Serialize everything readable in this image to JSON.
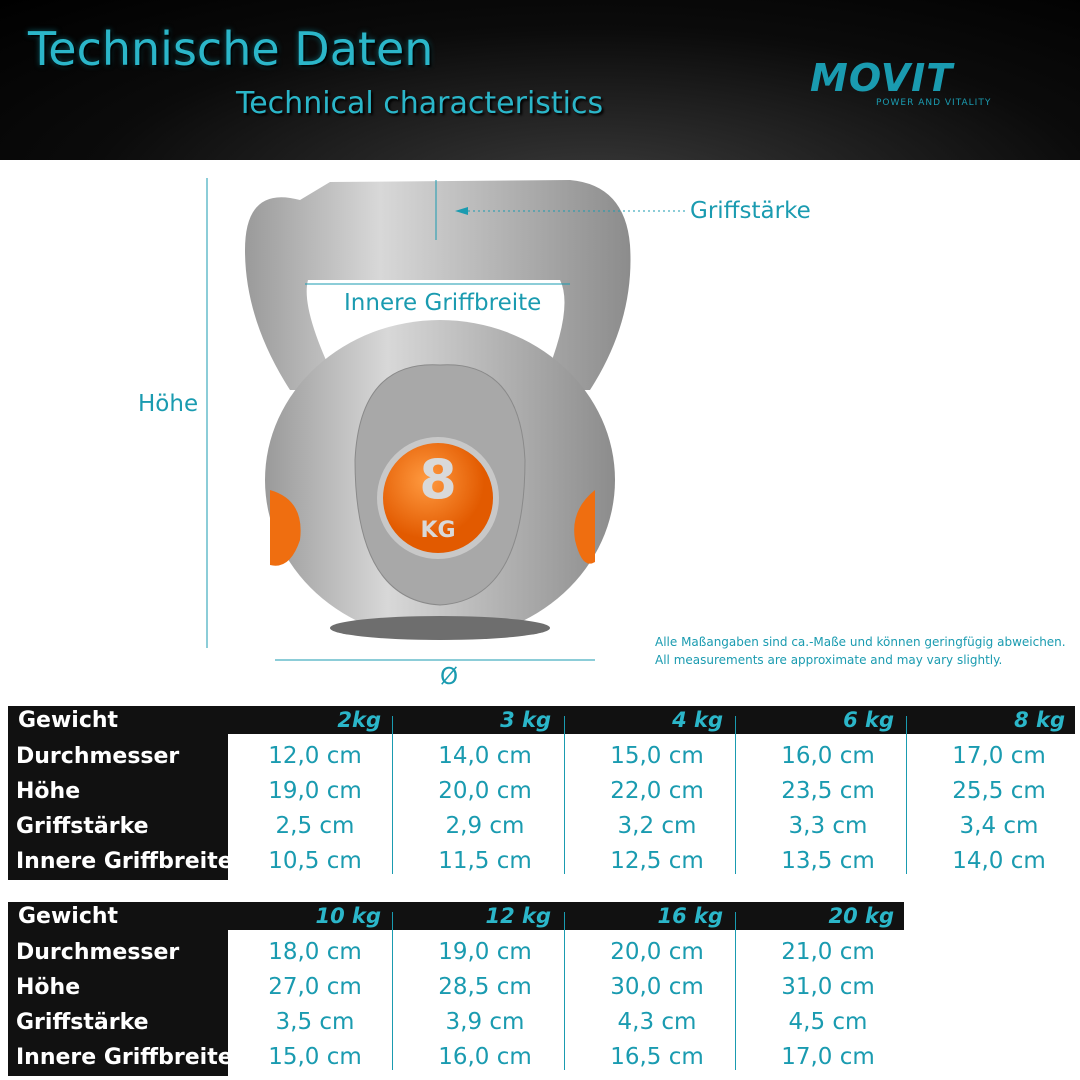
{
  "header": {
    "title": "Technische Daten",
    "subtitle": "Technical characteristics",
    "logo": "MOVIT",
    "logo_tagline": "POWER AND VITALITY"
  },
  "diagram": {
    "griffstaerke": "Griffstärke",
    "innere_griffbreite": "Innere Griffbreite",
    "hoehe": "Höhe",
    "durchmesser": "Ø",
    "weight_number": "8",
    "weight_unit": "KG"
  },
  "note": [
    "Alle Maßangaben sind ca.-Maße und können geringfügig abweichen.",
    "All measurements are approximate and may vary slightly."
  ],
  "tables": [
    {
      "header_label": "Gewicht",
      "columns": [
        "2kg",
        "3 kg",
        "4 kg",
        "6 kg",
        "8 kg"
      ],
      "rows": [
        {
          "label": "Durchmesser",
          "cells": [
            "12,0 cm",
            "14,0 cm",
            "15,0 cm",
            "16,0 cm",
            "17,0 cm"
          ]
        },
        {
          "label": "Höhe",
          "cells": [
            "19,0 cm",
            "20,0 cm",
            "22,0 cm",
            "23,5 cm",
            "25,5 cm"
          ]
        },
        {
          "label": "Griffstärke",
          "cells": [
            "2,5 cm",
            "2,9 cm",
            "3,2 cm",
            "3,3 cm",
            "3,4 cm"
          ]
        },
        {
          "label": "Innere Griffbreite",
          "cells": [
            "10,5 cm",
            "11,5 cm",
            "12,5 cm",
            "13,5 cm",
            "14,0 cm"
          ]
        }
      ]
    },
    {
      "header_label": "Gewicht",
      "columns": [
        "10 kg",
        "12 kg",
        "16 kg",
        "20 kg"
      ],
      "rows": [
        {
          "label": "Durchmesser",
          "cells": [
            "18,0 cm",
            "19,0 cm",
            "20,0 cm",
            "21,0 cm"
          ]
        },
        {
          "label": "Höhe",
          "cells": [
            "27,0 cm",
            "28,5 cm",
            "30,0 cm",
            "31,0 cm"
          ]
        },
        {
          "label": "Griffstärke",
          "cells": [
            "3,5 cm",
            "3,9 cm",
            "4,3 cm",
            "4,5 cm"
          ]
        },
        {
          "label": "Innere Griffbreite",
          "cells": [
            "15,0 cm",
            "16,0 cm",
            "16,5 cm",
            "17,0 cm"
          ]
        }
      ]
    }
  ]
}
